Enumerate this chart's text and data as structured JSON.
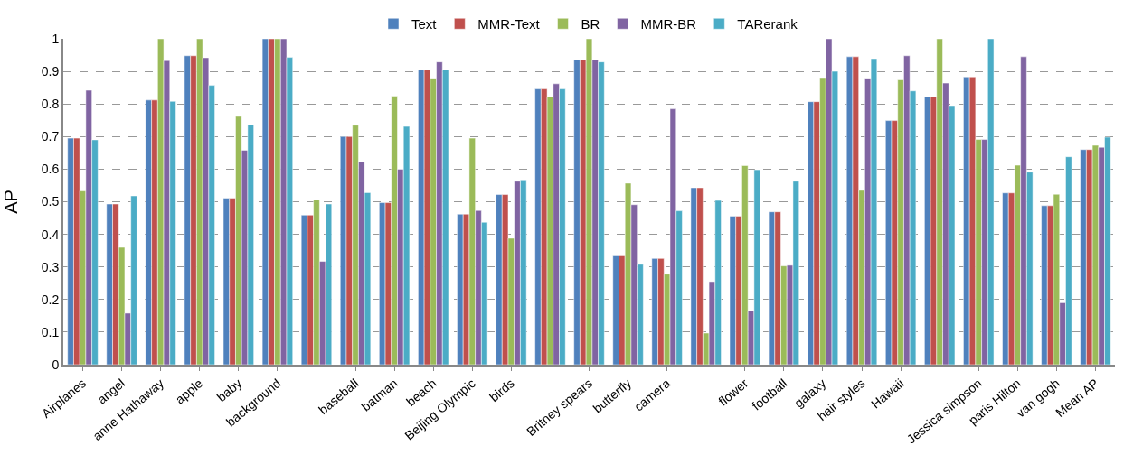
{
  "chart_data": {
    "type": "bar",
    "ylabel": "AP",
    "categories": [
      "Airplanes",
      "angel",
      "anne Hathaway",
      "apple",
      "baby",
      "background",
      null,
      "baseball",
      "batman",
      "beach",
      "Beijing Olympic",
      "birds",
      null,
      "Britney spears",
      "butterfly",
      "camera",
      null,
      "flower",
      "football",
      "galaxy",
      "hair styles",
      "Hawaii",
      null,
      "Jessica simpson",
      "paris Hilton",
      "van gogh",
      "Mean AP"
    ],
    "series": [
      {
        "name": "Text",
        "color": "#4f81bd",
        "values": [
          0.695,
          0.493,
          0.812,
          0.948,
          0.511,
          1.0,
          0.459,
          0.7,
          0.497,
          0.906,
          0.462,
          0.522,
          0.846,
          0.936,
          0.334,
          0.326,
          0.543,
          0.456,
          0.469,
          0.807,
          0.945,
          0.749,
          0.823,
          0.883,
          0.527,
          0.488,
          0.66
        ]
      },
      {
        "name": "MMR-Text",
        "color": "#c0504d",
        "values": [
          0.695,
          0.493,
          0.812,
          0.948,
          0.511,
          1.0,
          0.459,
          0.7,
          0.497,
          0.906,
          0.462,
          0.522,
          0.846,
          0.936,
          0.334,
          0.326,
          0.543,
          0.456,
          0.469,
          0.807,
          0.945,
          0.749,
          0.823,
          0.883,
          0.527,
          0.488,
          0.66
        ]
      },
      {
        "name": "BR",
        "color": "#9bbb59",
        "values": [
          0.533,
          0.36,
          1.0,
          1.0,
          0.762,
          1.0,
          0.507,
          0.735,
          0.824,
          0.879,
          0.695,
          0.388,
          0.822,
          1.0,
          0.557,
          0.278,
          0.097,
          0.611,
          0.303,
          0.881,
          0.535,
          0.874,
          1.0,
          0.691,
          0.612,
          0.523,
          0.673
        ]
      },
      {
        "name": "MMR-BR",
        "color": "#8064a2",
        "values": [
          0.842,
          0.158,
          0.933,
          0.942,
          0.658,
          1.0,
          0.317,
          0.623,
          0.6,
          0.929,
          0.473,
          0.563,
          0.862,
          0.936,
          0.491,
          0.785,
          0.255,
          0.165,
          0.305,
          1.0,
          0.879,
          0.948,
          0.864,
          0.691,
          0.945,
          0.19,
          0.667
        ]
      },
      {
        "name": "TARerank",
        "color": "#4bacc6",
        "values": [
          0.69,
          0.518,
          0.808,
          0.857,
          0.737,
          0.943,
          0.493,
          0.528,
          0.731,
          0.906,
          0.437,
          0.567,
          0.846,
          0.929,
          0.308,
          0.472,
          0.504,
          0.598,
          0.563,
          0.9,
          0.939,
          0.84,
          0.795,
          1.0,
          0.591,
          0.638,
          0.698
        ]
      }
    ],
    "ylim": [
      0,
      1
    ],
    "yticks": [
      0,
      0.1,
      0.2,
      0.3,
      0.4,
      0.5,
      0.6,
      0.7,
      0.8,
      0.9,
      1
    ],
    "grid": "y",
    "legend": "top"
  }
}
